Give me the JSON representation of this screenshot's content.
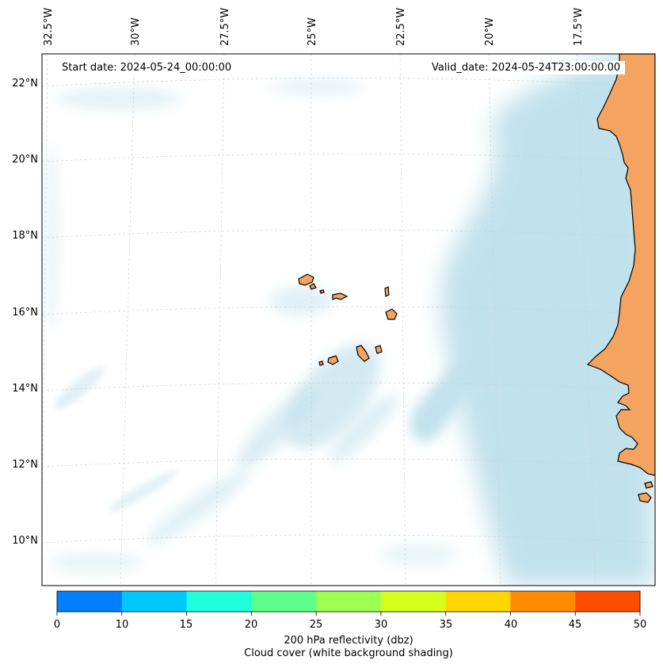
{
  "header": {
    "start_date": "Start date: 2024-05-24_00:00:00",
    "valid_date": "Valid_date: 2024-05-24T23:00:00.00"
  },
  "axes": {
    "longitude_labels": [
      "32.5°W",
      "30°W",
      "27.5°W",
      "25°W",
      "22.5°W",
      "20°W",
      "17.5°W"
    ],
    "latitude_labels": [
      "22°N",
      "20°N",
      "18°N",
      "16°N",
      "14°N",
      "12°N",
      "10°N"
    ],
    "gridlines": true
  },
  "colorbar": {
    "ticks": [
      "0",
      "10",
      "15",
      "20",
      "25",
      "30",
      "35",
      "40",
      "45",
      "50"
    ],
    "colors": [
      "#007fff",
      "#00c8ff",
      "#1effdd",
      "#5dff8a",
      "#9cff52",
      "#d7ff1d",
      "#ffd700",
      "#ff8c00",
      "#ff4c00"
    ],
    "label_line1": "200 hPa reflectivity (dbz)",
    "label_line2": "Cloud cover (white background shading)"
  },
  "map": {
    "land_color": "#f4a460",
    "cloud_color": "#add8e6",
    "coastline_color": "#000000",
    "features": [
      "West African coast",
      "Cape Verde islands"
    ]
  }
}
